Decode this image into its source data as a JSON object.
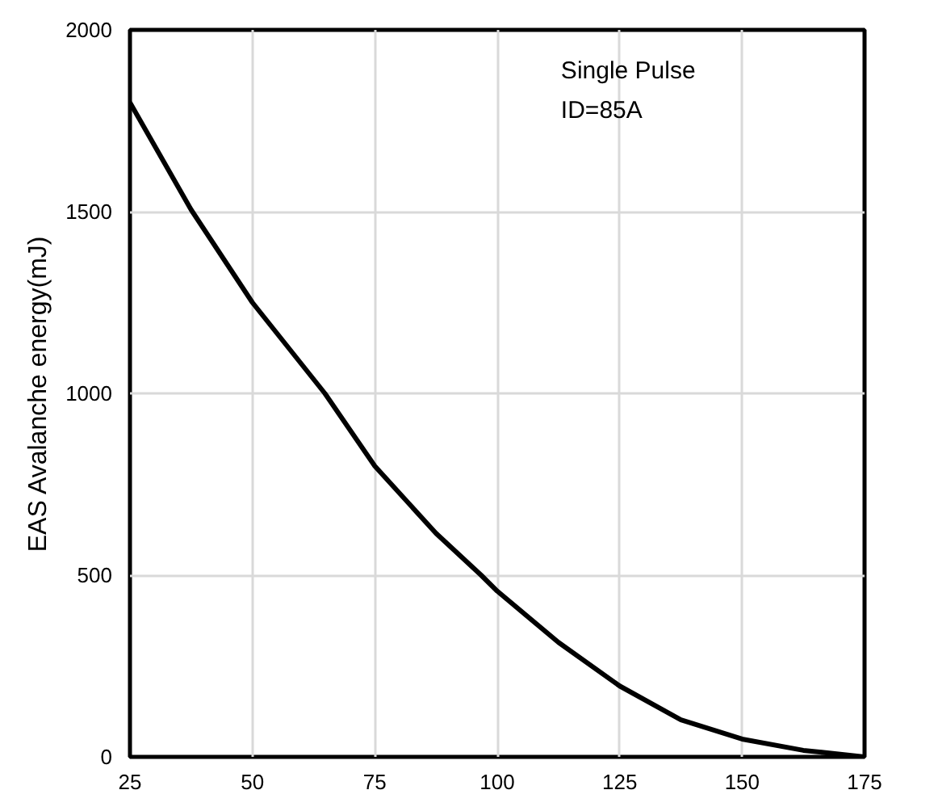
{
  "chart_data": {
    "type": "line",
    "ylabel": "EAS Avalanche energy(mJ)",
    "annotations": [
      "Single Pulse",
      "ID=85A"
    ],
    "x": [
      25,
      37.5,
      50,
      64.8,
      75,
      87.5,
      96.7,
      100,
      112.5,
      125,
      137.5,
      150,
      162.5,
      175
    ],
    "series": [
      {
        "color": "#000000",
        "values": [
          1800,
          1505,
          1250,
          1000,
          800,
          615,
          500,
          456,
          315,
          195,
          102,
          49,
          18,
          0
        ]
      }
    ],
    "xlim": [
      25,
      175
    ],
    "xticks": [
      25,
      50,
      75,
      100,
      125,
      150,
      175
    ],
    "ylim": [
      0,
      2000
    ],
    "yticks": [
      0,
      500,
      1000,
      1500,
      2000
    ],
    "grid": true,
    "marker": "none",
    "line_style": "solid"
  }
}
